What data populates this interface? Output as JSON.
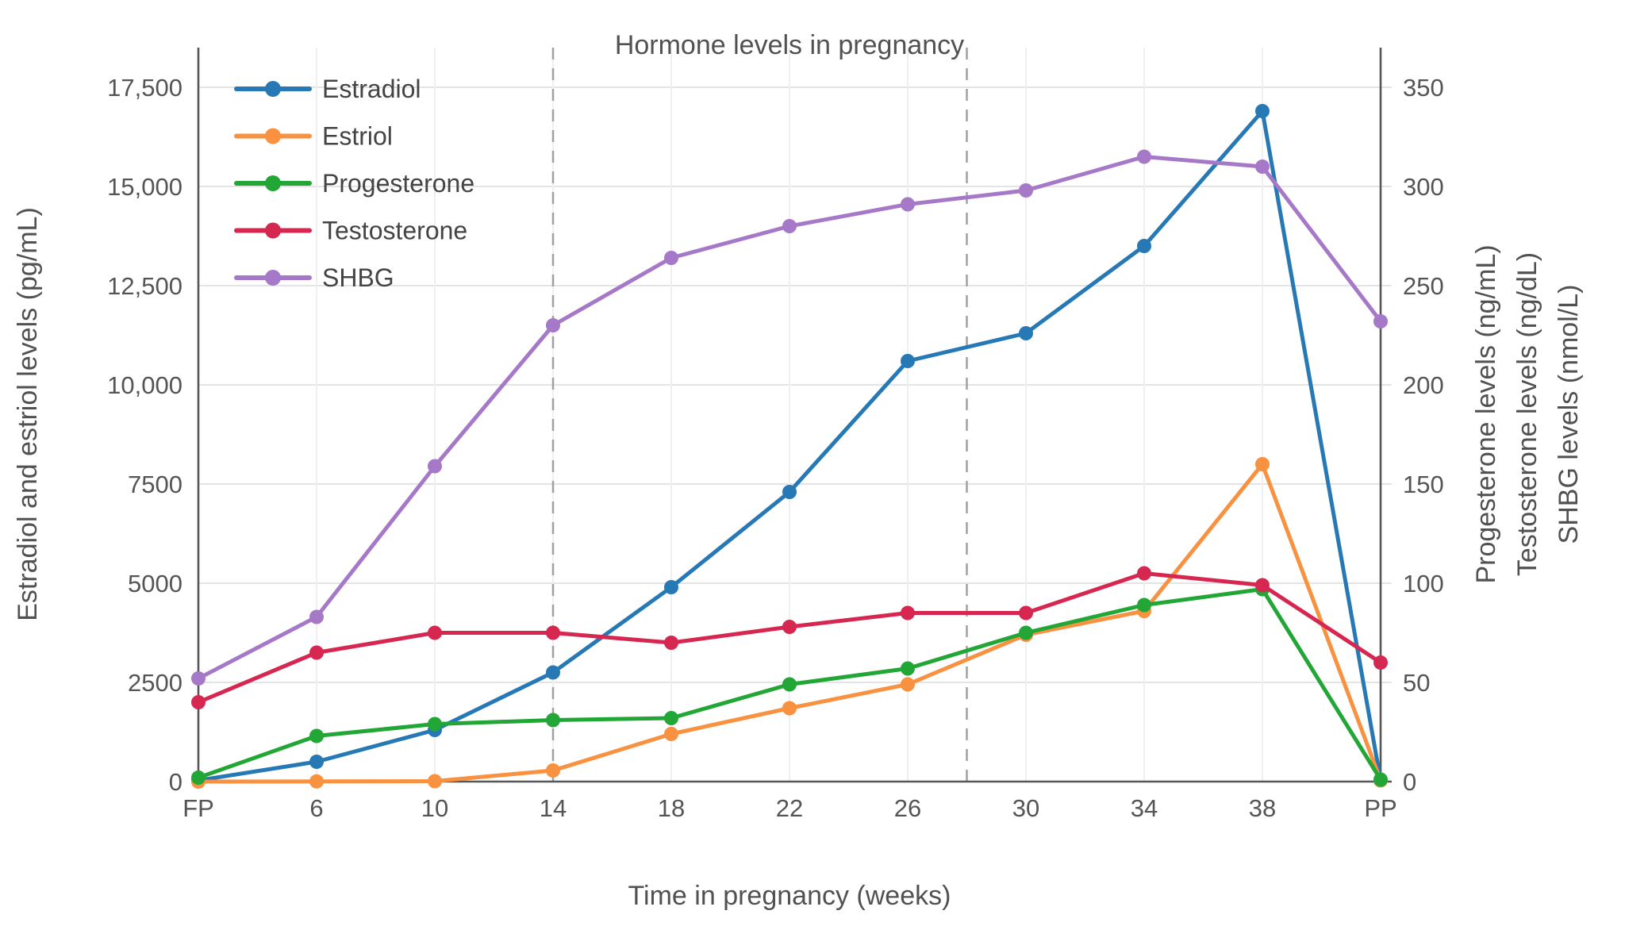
{
  "page": {
    "background": "#ffffff"
  },
  "colors": {
    "axis_line": "#565656",
    "grid_h": "#e4e4e4",
    "grid_v": "#efefef",
    "dashed_line": "#a0a0a0",
    "text": "#555555"
  },
  "chart_data": {
    "type": "line",
    "title": "Hormone levels in pregnancy",
    "xlabel": "Time in pregnancy (weeks)",
    "ylabel_left": "Estradiol and estriol levels (pg/mL)",
    "ylabel_right": [
      "Progesterone levels (ng/mL)",
      "Testosterone levels (ng/dL)",
      "SHBG levels (nmol/L)"
    ],
    "x_categories": [
      "FP",
      "6",
      "10",
      "14",
      "18",
      "22",
      "26",
      "30",
      "34",
      "38",
      "PP"
    ],
    "y_left": {
      "min": 0,
      "max": 17500,
      "ticks": [
        0,
        2500,
        5000,
        7500,
        10000,
        12500,
        15000,
        17500
      ],
      "tick_labels": [
        "0",
        "2500",
        "5000",
        "7500",
        "10,000",
        "12,500",
        "15,000",
        "17,500"
      ]
    },
    "y_right": {
      "min": 0,
      "max": 350,
      "ticks": [
        0,
        50,
        100,
        150,
        200,
        250,
        300,
        350
      ],
      "tick_labels": [
        "0",
        "50",
        "100",
        "150",
        "200",
        "250",
        "300",
        "350"
      ]
    },
    "dashed_vline_weeks": [
      14,
      28
    ],
    "solid_vline_categories": [
      "FP",
      "PP"
    ],
    "grid": true,
    "legend_position": "top-left",
    "series": [
      {
        "name": "Estradiol",
        "axis": "left",
        "unit": "pg/mL",
        "color": "#2779b5",
        "values": [
          30,
          500,
          1300,
          2750,
          4900,
          7300,
          10600,
          11300,
          13500,
          16900,
          30
        ]
      },
      {
        "name": "Estriol",
        "axis": "left",
        "unit": "pg/mL",
        "color": "#f89140",
        "values": [
          0,
          5,
          10,
          280,
          1200,
          1850,
          2450,
          3700,
          4300,
          8000,
          30
        ]
      },
      {
        "name": "Progesterone",
        "axis": "right",
        "unit": "ng/mL",
        "color": "#22a636",
        "values": [
          2,
          23,
          29,
          31,
          32,
          49,
          57,
          75,
          89,
          97,
          1
        ]
      },
      {
        "name": "Testosterone",
        "axis": "right",
        "unit": "ng/dL",
        "color": "#d62750",
        "values": [
          40,
          65,
          75,
          75,
          70,
          78,
          85,
          85,
          105,
          99,
          60
        ]
      },
      {
        "name": "SHBG",
        "axis": "right",
        "unit": "nmol/L",
        "color": "#a678c8",
        "values": [
          52,
          83,
          159,
          230,
          264,
          280,
          291,
          298,
          315,
          310,
          232
        ]
      }
    ]
  }
}
